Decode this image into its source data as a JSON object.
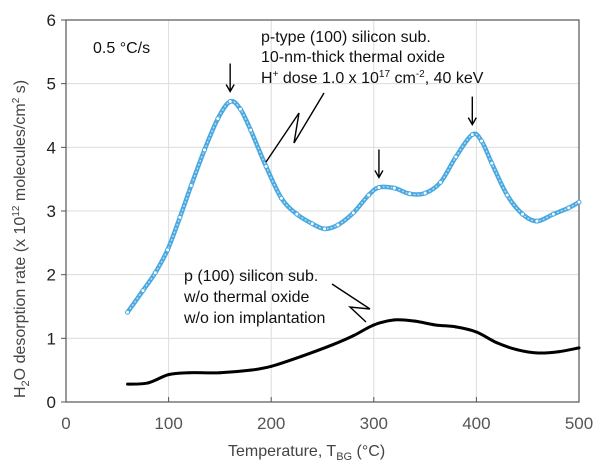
{
  "chart_data": {
    "type": "line",
    "xlabel": {
      "main": "Temperature, T",
      "sub": "BG",
      "unit": " (°C)"
    },
    "ylabel": {
      "p1": "H",
      "sub": "2",
      "p2": "O desorption rate (x 10",
      "sup1": "12",
      "p3": " molecules/cm",
      "sup2": "2",
      "p4": " s)"
    },
    "xlim": [
      0,
      500
    ],
    "ylim": [
      0,
      6
    ],
    "xticks": [
      "0",
      "100",
      "200",
      "300",
      "400",
      "500"
    ],
    "yticks": [
      "0",
      "1",
      "2",
      "3",
      "4",
      "5",
      "6"
    ],
    "grid": true,
    "rate_label": "0.5 °C/s",
    "series": [
      {
        "color": "#4aa8e0",
        "marker": "hollow-circle",
        "annotation": {
          "line1": "p-type (100) silicon sub.",
          "line2": "10-nm-thick thermal oxide",
          "line3a": "H",
          "line3sup1": "+",
          "line3b": " dose 1.0 x 10",
          "line3sup2": "17",
          "line3c": " cm",
          "line3sup3": "-2",
          "line3d": ", 40 keV"
        },
        "x": [
          60,
          75,
          87,
          99,
          111,
          122,
          135,
          148,
          160,
          170,
          180,
          195,
          210,
          225,
          240,
          252,
          265,
          280,
          295,
          305,
          320,
          335,
          350,
          365,
          380,
          396,
          405,
          415,
          430,
          445,
          459,
          475,
          490,
          500
        ],
        "y": [
          1.41,
          1.75,
          2.03,
          2.39,
          2.9,
          3.4,
          3.96,
          4.45,
          4.72,
          4.6,
          4.27,
          3.7,
          3.2,
          2.95,
          2.8,
          2.72,
          2.78,
          2.97,
          3.25,
          3.37,
          3.36,
          3.27,
          3.28,
          3.45,
          3.85,
          4.2,
          4.1,
          3.75,
          3.25,
          2.95,
          2.84,
          2.95,
          3.05,
          3.14
        ],
        "peak_arrows_x": [
          160,
          305,
          396
        ]
      },
      {
        "color": "#000000",
        "annotation": {
          "line1": "p (100) silicon sub.",
          "line2": "w/o thermal oxide",
          "line3": "w/o ion implantation"
        },
        "x": [
          60,
          80,
          100,
          120,
          150,
          180,
          200,
          230,
          260,
          280,
          300,
          320,
          340,
          360,
          380,
          400,
          420,
          440,
          460,
          480,
          500
        ],
        "y": [
          0.28,
          0.3,
          0.43,
          0.46,
          0.46,
          0.5,
          0.56,
          0.72,
          0.9,
          1.04,
          1.21,
          1.29,
          1.27,
          1.21,
          1.18,
          1.1,
          0.93,
          0.82,
          0.77,
          0.79,
          0.85
        ]
      }
    ]
  }
}
